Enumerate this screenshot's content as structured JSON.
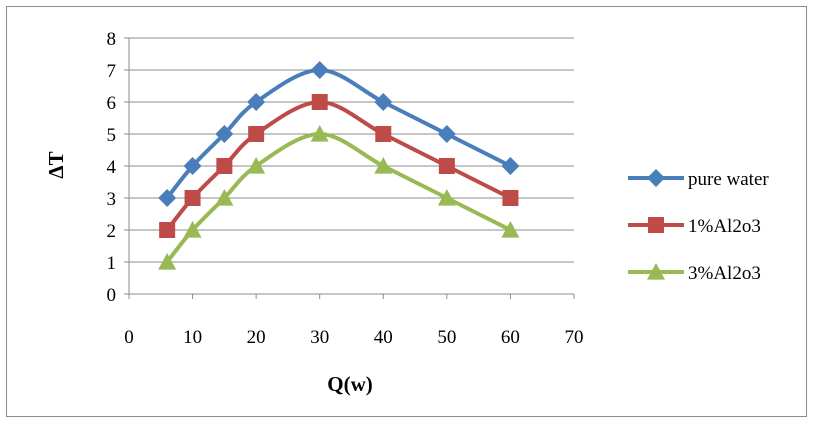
{
  "chart_data": {
    "type": "line",
    "title": "",
    "xlabel": "Q(w)",
    "ylabel": "ΔT",
    "xlim": [
      0,
      70
    ],
    "ylim": [
      0,
      8
    ],
    "xticks": [
      0,
      10,
      20,
      30,
      40,
      50,
      60,
      70
    ],
    "yticks": [
      0,
      1,
      2,
      3,
      4,
      5,
      6,
      7,
      8
    ],
    "grid": "horizontal",
    "legend": "right",
    "x": [
      6,
      10,
      15,
      20,
      30,
      40,
      50,
      60
    ],
    "series": [
      {
        "name": "pure water",
        "values": [
          3,
          4,
          5,
          6,
          7,
          6,
          5,
          4
        ],
        "color": "#4a7ebb",
        "marker": "diamond"
      },
      {
        "name": "1%Al2o3",
        "values": [
          2,
          3,
          4,
          5,
          6,
          5,
          4,
          3
        ],
        "color": "#be4b48",
        "marker": "square"
      },
      {
        "name": "3%Al2o3",
        "values": [
          1,
          2,
          3,
          4,
          5,
          4,
          3,
          2
        ],
        "color": "#98b954",
        "marker": "triangle"
      }
    ]
  }
}
